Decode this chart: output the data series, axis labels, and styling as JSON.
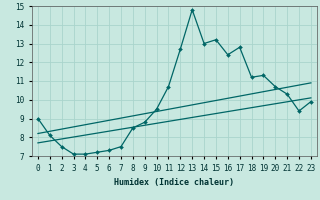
{
  "title": "",
  "xlabel": "Humidex (Indice chaleur)",
  "xlim": [
    -0.5,
    23.5
  ],
  "ylim": [
    7,
    15
  ],
  "xticks": [
    0,
    1,
    2,
    3,
    4,
    5,
    6,
    7,
    8,
    9,
    10,
    11,
    12,
    13,
    14,
    15,
    16,
    17,
    18,
    19,
    20,
    21,
    22,
    23
  ],
  "yticks": [
    7,
    8,
    9,
    10,
    11,
    12,
    13,
    14,
    15
  ],
  "bg_color": "#c8e8e0",
  "line_color": "#006666",
  "grid_color": "#aad4cc",
  "line1_x": [
    0,
    1,
    2,
    3,
    4,
    5,
    6,
    7,
    8,
    9,
    10,
    11,
    12,
    13,
    14,
    15,
    16,
    17,
    18,
    19,
    20,
    21,
    22,
    23
  ],
  "line1_y": [
    9.0,
    8.1,
    7.5,
    7.1,
    7.1,
    7.2,
    7.3,
    7.5,
    8.5,
    8.8,
    9.5,
    10.7,
    12.7,
    14.8,
    13.0,
    13.2,
    12.4,
    12.8,
    11.2,
    11.3,
    10.7,
    10.3,
    9.4,
    9.9
  ],
  "line2_x": [
    0,
    23
  ],
  "line2_y": [
    8.2,
    10.9
  ],
  "line3_x": [
    0,
    23
  ],
  "line3_y": [
    7.7,
    10.1
  ]
}
